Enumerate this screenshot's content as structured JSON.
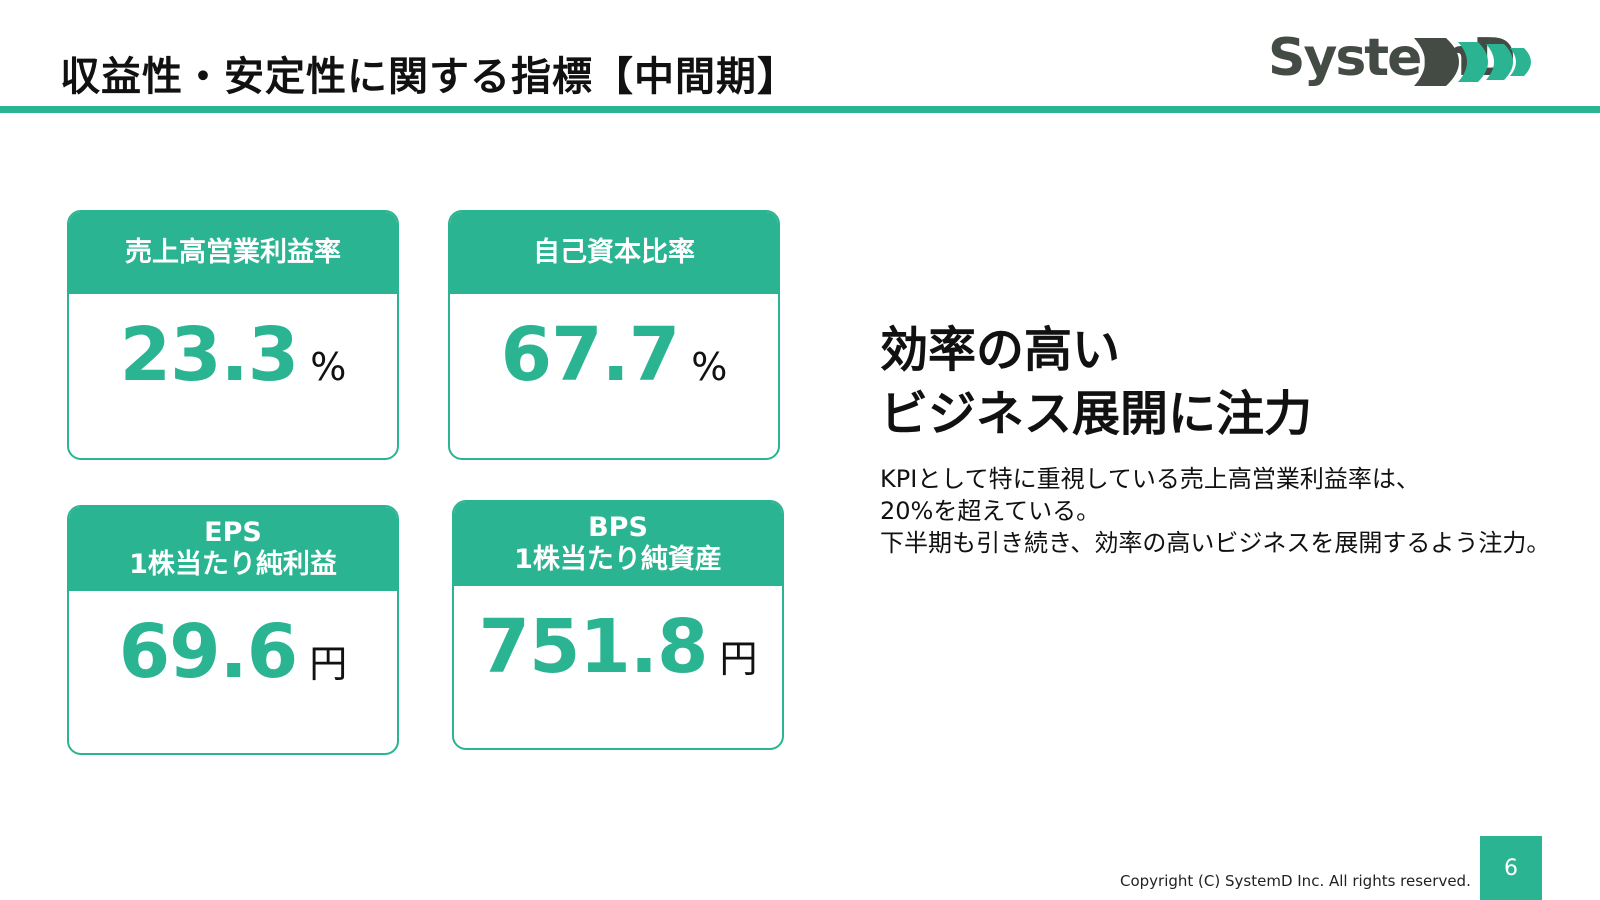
{
  "header": {
    "title": "収益性・安定性に関する指標【中間期】"
  },
  "logo": {
    "text": "SystemD",
    "brand_dark": "#444b45",
    "brand_green": "#2bb491"
  },
  "cards": [
    {
      "title_lines": [
        "売上高営業利益率"
      ],
      "value": "23.3",
      "unit": "%"
    },
    {
      "title_lines": [
        "自己資本比率"
      ],
      "value": "67.7",
      "unit": "%"
    },
    {
      "title_lines": [
        "EPS",
        "1株当たり純利益"
      ],
      "value": "69.6",
      "unit": "円"
    },
    {
      "title_lines": [
        "BPS",
        "1株当たり純資産"
      ],
      "value": "751.8",
      "unit": "円"
    }
  ],
  "headline": {
    "lines": [
      "効率の高い",
      "ビジネス展開に注力"
    ]
  },
  "description": {
    "lines": [
      "KPIとして特に重視している売上高営業利益率は、",
      "20%を超えている。",
      "下半期も引き続き、効率の高いビジネスを展開するよう注力。"
    ]
  },
  "footer": {
    "copyright": "Copyright (C) SystemD Inc. All rights reserved.",
    "page_number": "6"
  },
  "colors": {
    "accent": "#2bb491",
    "text": "#111111"
  }
}
